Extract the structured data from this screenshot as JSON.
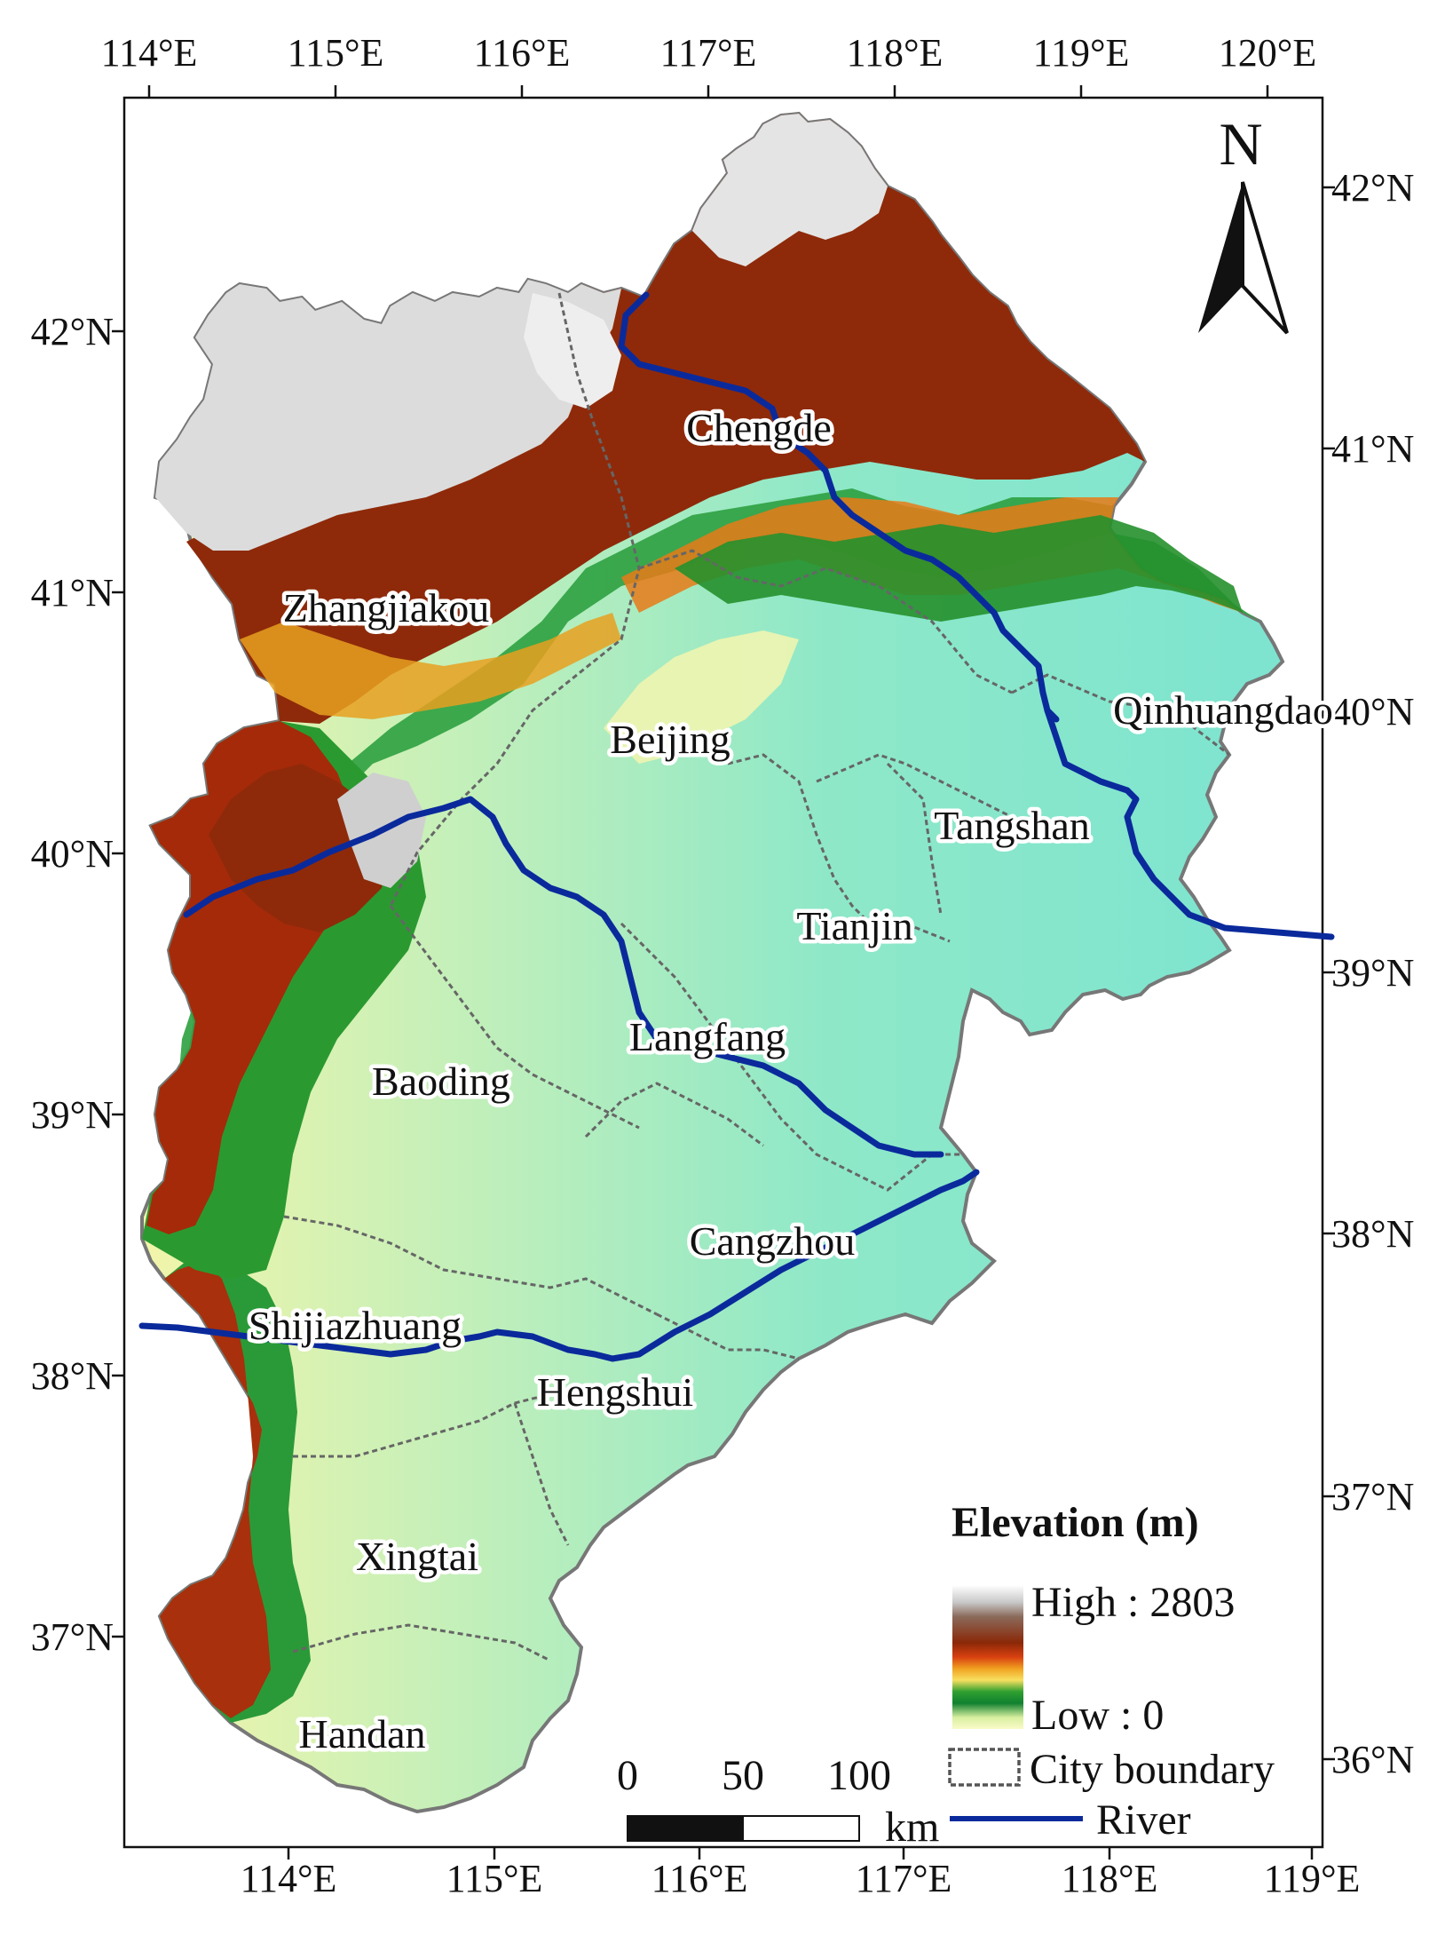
{
  "map": {
    "north_label": "N",
    "top_ticks": [
      "114°E",
      "115°E",
      "116°E",
      "117°E",
      "118°E",
      "119°E",
      "120°E"
    ],
    "bottom_ticks": [
      "114°E",
      "115°E",
      "116°E",
      "117°E",
      "118°E",
      "119°E"
    ],
    "left_ticks": [
      "42°N",
      "41°N",
      "40°N",
      "39°N",
      "38°N",
      "37°N"
    ],
    "right_ticks": [
      "42°N",
      "41°N",
      "40°N",
      "39°N",
      "38°N",
      "37°N",
      "36°N"
    ],
    "cities": [
      {
        "name": "Chengde"
      },
      {
        "name": "Zhangjiakou"
      },
      {
        "name": "Qinhuangdao"
      },
      {
        "name": "Beijing"
      },
      {
        "name": "Tangshan"
      },
      {
        "name": "Tianjin"
      },
      {
        "name": "Langfang"
      },
      {
        "name": "Baoding"
      },
      {
        "name": "Cangzhou"
      },
      {
        "name": "Shijiazhuang"
      },
      {
        "name": "Hengshui"
      },
      {
        "name": "Xingtai"
      },
      {
        "name": "Handan"
      }
    ],
    "colors": {
      "river": "#0a2a9c",
      "plain": "#7fe6cc",
      "low_hills": "#f5f5a8",
      "green": "#2a9a2a",
      "orange": "#f0a020",
      "red_brown": "#a02a0a",
      "high": "#f4f4f4"
    }
  },
  "legend": {
    "title": "Elevation (m)",
    "high_label": "High : 2803",
    "low_label": "Low : 0",
    "boundary_label": "City boundary",
    "river_label": "River"
  },
  "scale_bar": {
    "labels": [
      "0",
      "50",
      "100"
    ],
    "unit": "km"
  }
}
